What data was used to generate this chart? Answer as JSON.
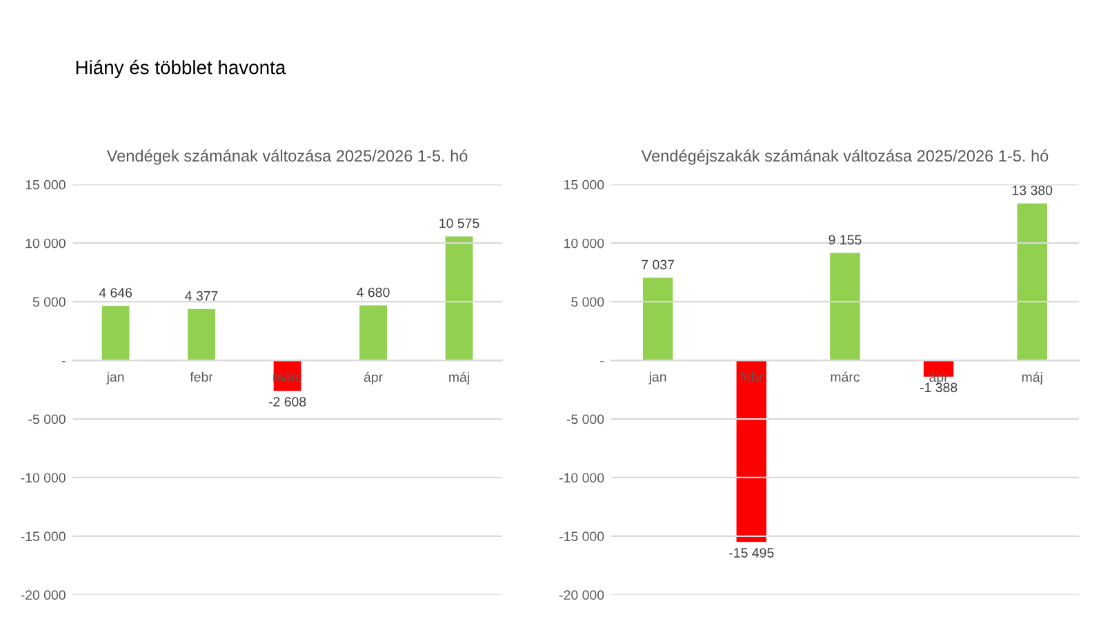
{
  "chart_data": [
    {
      "type": "bar",
      "title": "Vendégek számának változása 2025/2026 1-5. hó",
      "annotations": [
        "Hiány és többlet havonta"
      ],
      "categories": [
        "jan",
        "febr",
        "márc",
        "ápr",
        "máj"
      ],
      "values": [
        4646,
        4377,
        -2608,
        4680,
        10575
      ],
      "value_labels": [
        "4 646",
        "4 377",
        "-2 608",
        "4 680",
        "10 575"
      ],
      "colors": [
        "#92d050",
        "#92d050",
        "#ff0000",
        "#92d050",
        "#92d050"
      ],
      "ylim": [
        -20000,
        15000
      ],
      "yticks": [
        {
          "value": -20000,
          "label": "-20 000"
        },
        {
          "value": -15000,
          "label": "-15 000"
        },
        {
          "value": -10000,
          "label": "-10 000"
        },
        {
          "value": -5000,
          "label": "-5 000"
        },
        {
          "value": 0,
          "label": "-"
        },
        {
          "value": 5000,
          "label": "5 000"
        },
        {
          "value": 10000,
          "label": "10 000"
        },
        {
          "value": 15000,
          "label": "15 000"
        }
      ],
      "grid": "y"
    },
    {
      "type": "bar",
      "title": "Vendégéjszakák számának változása 2025/2026 1-5. hó",
      "categories": [
        "jan",
        "febr",
        "márc",
        "ápr",
        "máj"
      ],
      "values": [
        7037,
        -15495,
        9155,
        -1388,
        13380
      ],
      "value_labels": [
        "7 037",
        "-15 495",
        "9 155",
        "-1 388",
        "13 380"
      ],
      "colors": [
        "#92d050",
        "#ff0000",
        "#92d050",
        "#ff0000",
        "#92d050"
      ],
      "ylim": [
        -20000,
        15000
      ],
      "yticks": [
        {
          "value": -20000,
          "label": "-20 000"
        },
        {
          "value": -15000,
          "label": "-15 000"
        },
        {
          "value": -10000,
          "label": "-10 000"
        },
        {
          "value": -5000,
          "label": "-5 000"
        },
        {
          "value": 0,
          "label": "-"
        },
        {
          "value": 5000,
          "label": "5 000"
        },
        {
          "value": 10000,
          "label": "10 000"
        },
        {
          "value": 15000,
          "label": "15 000"
        }
      ],
      "grid": "y"
    }
  ]
}
